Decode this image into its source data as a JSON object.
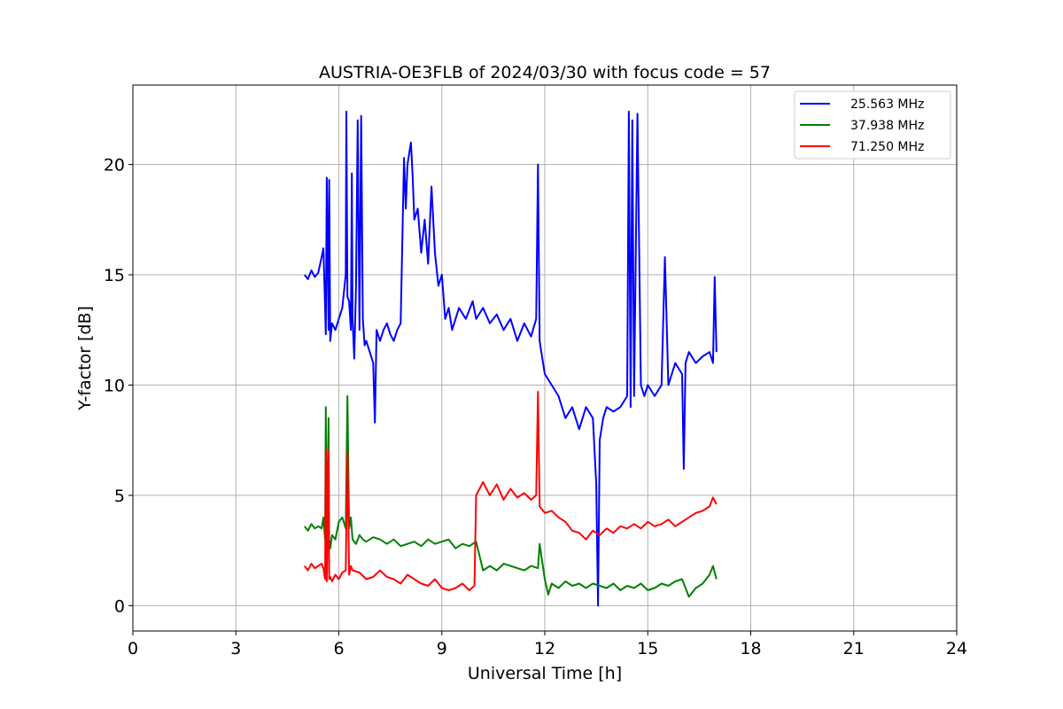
{
  "chart_data": {
    "type": "line",
    "title": "AUSTRIA-OE3FLB of 2024/03/30 with focus code = 57",
    "xlabel": "Universal Time [h]",
    "ylabel": "Y-factor [dB]",
    "xlim": [
      0,
      24
    ],
    "ylim": [
      -1.15,
      23.6
    ],
    "xticks": [
      0,
      3,
      6,
      9,
      12,
      15,
      18,
      21,
      24
    ],
    "yticks": [
      0,
      5,
      10,
      15,
      20
    ],
    "grid": true,
    "legend_position": "top-right",
    "series": [
      {
        "name": "25.563 MHz",
        "color": "#0000ff",
        "x": [
          5.0,
          5.1,
          5.2,
          5.3,
          5.4,
          5.5,
          5.55,
          5.6,
          5.62,
          5.65,
          5.7,
          5.72,
          5.75,
          5.8,
          5.9,
          6.0,
          6.1,
          6.2,
          6.22,
          6.25,
          6.3,
          6.35,
          6.38,
          6.4,
          6.45,
          6.5,
          6.55,
          6.6,
          6.65,
          6.7,
          6.75,
          6.8,
          6.9,
          7.0,
          7.05,
          7.1,
          7.2,
          7.3,
          7.4,
          7.5,
          7.6,
          7.7,
          7.8,
          7.9,
          7.95,
          8.0,
          8.1,
          8.15,
          8.2,
          8.3,
          8.4,
          8.5,
          8.6,
          8.7,
          8.8,
          8.9,
          9.0,
          9.1,
          9.2,
          9.3,
          9.5,
          9.7,
          9.9,
          10.0,
          10.2,
          10.4,
          10.6,
          10.8,
          11.0,
          11.2,
          11.4,
          11.6,
          11.75,
          11.8,
          11.85,
          11.9,
          12.0,
          12.2,
          12.4,
          12.6,
          12.8,
          13.0,
          13.2,
          13.4,
          13.5,
          13.55,
          13.6,
          13.7,
          13.8,
          14.0,
          14.2,
          14.4,
          14.45,
          14.5,
          14.55,
          14.6,
          14.7,
          14.8,
          14.9,
          15.0,
          15.2,
          15.4,
          15.5,
          15.6,
          15.7,
          15.8,
          16.0,
          16.05,
          16.1,
          16.2,
          16.4,
          16.6,
          16.8,
          16.9,
          16.95,
          17.0
        ],
        "values": [
          15.0,
          14.8,
          15.2,
          14.9,
          15.1,
          15.8,
          16.2,
          13.5,
          12.3,
          19.4,
          12.5,
          19.3,
          12.0,
          12.8,
          12.5,
          13.0,
          13.5,
          15.0,
          22.4,
          14.0,
          13.8,
          12.5,
          19.6,
          13.0,
          11.2,
          14.5,
          22.0,
          12.5,
          22.2,
          13.0,
          11.8,
          12.0,
          11.5,
          11.0,
          8.3,
          12.5,
          12.0,
          12.5,
          12.8,
          12.3,
          12.0,
          12.5,
          12.8,
          20.3,
          18.0,
          20.0,
          21.0,
          19.5,
          17.5,
          18.0,
          16.0,
          17.5,
          15.5,
          19.0,
          16.0,
          14.5,
          15.0,
          13.0,
          13.5,
          12.5,
          13.5,
          13.0,
          13.8,
          13.0,
          13.5,
          12.8,
          13.2,
          12.5,
          13.0,
          12.0,
          12.8,
          12.2,
          13.0,
          20.0,
          12.0,
          11.5,
          10.5,
          10.0,
          9.5,
          8.5,
          9.0,
          8.0,
          9.0,
          8.5,
          5.5,
          0.0,
          7.5,
          8.5,
          9.0,
          8.8,
          9.0,
          9.5,
          22.4,
          9.0,
          22.0,
          9.5,
          22.3,
          10.0,
          9.5,
          10.0,
          9.5,
          10.0,
          15.8,
          10.0,
          10.5,
          11.0,
          10.5,
          6.2,
          11.0,
          11.5,
          11.0,
          11.3,
          11.5,
          11.0,
          14.9,
          11.5
        ]
      },
      {
        "name": "37.938 MHz",
        "color": "#008000",
        "x": [
          5.0,
          5.1,
          5.2,
          5.3,
          5.4,
          5.5,
          5.55,
          5.6,
          5.62,
          5.65,
          5.7,
          5.72,
          5.75,
          5.8,
          5.9,
          6.0,
          6.1,
          6.2,
          6.25,
          6.3,
          6.35,
          6.4,
          6.5,
          6.6,
          6.7,
          6.8,
          7.0,
          7.2,
          7.4,
          7.6,
          7.8,
          8.0,
          8.2,
          8.4,
          8.6,
          8.8,
          9.0,
          9.2,
          9.4,
          9.6,
          9.8,
          10.0,
          10.2,
          10.4,
          10.6,
          10.8,
          11.0,
          11.2,
          11.4,
          11.6,
          11.8,
          11.85,
          12.0,
          12.1,
          12.2,
          12.4,
          12.6,
          12.8,
          13.0,
          13.2,
          13.4,
          13.6,
          13.8,
          14.0,
          14.2,
          14.4,
          14.6,
          14.8,
          15.0,
          15.2,
          15.4,
          15.6,
          15.8,
          16.0,
          16.2,
          16.4,
          16.6,
          16.8,
          16.9,
          17.0
        ],
        "values": [
          3.6,
          3.4,
          3.7,
          3.5,
          3.6,
          3.5,
          4.0,
          3.0,
          9.0,
          2.5,
          8.5,
          3.0,
          2.6,
          3.2,
          3.0,
          3.8,
          4.0,
          3.5,
          9.5,
          3.5,
          4.0,
          3.0,
          2.8,
          3.2,
          3.0,
          2.9,
          3.1,
          3.0,
          2.8,
          3.0,
          2.7,
          2.8,
          2.9,
          2.7,
          3.0,
          2.8,
          2.9,
          3.0,
          2.6,
          2.8,
          2.7,
          2.9,
          1.6,
          1.8,
          1.6,
          1.9,
          1.8,
          1.7,
          1.6,
          1.8,
          1.7,
          2.8,
          1.2,
          0.5,
          1.0,
          0.8,
          1.1,
          0.9,
          1.0,
          0.8,
          1.0,
          0.9,
          0.8,
          1.0,
          0.7,
          0.9,
          0.8,
          1.0,
          0.7,
          0.8,
          1.0,
          0.9,
          1.1,
          1.2,
          0.4,
          0.8,
          1.0,
          1.4,
          1.8,
          1.2
        ]
      },
      {
        "name": "71.250 MHz",
        "color": "#ff0000",
        "x": [
          5.0,
          5.1,
          5.2,
          5.3,
          5.4,
          5.5,
          5.55,
          5.6,
          5.62,
          5.65,
          5.7,
          5.72,
          5.75,
          5.8,
          5.9,
          6.0,
          6.1,
          6.2,
          6.25,
          6.3,
          6.35,
          6.4,
          6.6,
          6.8,
          7.0,
          7.2,
          7.4,
          7.6,
          7.8,
          8.0,
          8.2,
          8.4,
          8.6,
          8.8,
          9.0,
          9.2,
          9.4,
          9.6,
          9.8,
          9.95,
          10.0,
          10.2,
          10.4,
          10.6,
          10.8,
          11.0,
          11.2,
          11.4,
          11.6,
          11.75,
          11.8,
          11.85,
          12.0,
          12.2,
          12.4,
          12.6,
          12.8,
          13.0,
          13.2,
          13.4,
          13.6,
          13.8,
          14.0,
          14.2,
          14.4,
          14.6,
          14.8,
          15.0,
          15.2,
          15.4,
          15.6,
          15.8,
          16.0,
          16.2,
          16.4,
          16.6,
          16.8,
          16.9,
          17.0
        ],
        "values": [
          1.8,
          1.6,
          1.9,
          1.7,
          1.8,
          1.9,
          1.7,
          1.2,
          7.1,
          1.1,
          7.0,
          1.2,
          1.3,
          1.1,
          1.4,
          1.2,
          1.5,
          1.6,
          7.0,
          1.4,
          1.8,
          1.6,
          1.5,
          1.2,
          1.3,
          1.6,
          1.3,
          1.2,
          1.0,
          1.4,
          1.2,
          1.0,
          0.9,
          1.2,
          0.8,
          0.7,
          0.8,
          1.0,
          0.7,
          0.9,
          5.0,
          5.6,
          5.0,
          5.5,
          4.8,
          5.3,
          4.9,
          5.1,
          4.8,
          5.0,
          9.7,
          4.5,
          4.2,
          4.3,
          4.0,
          3.8,
          3.4,
          3.3,
          3.0,
          3.4,
          3.2,
          3.5,
          3.3,
          3.6,
          3.5,
          3.7,
          3.5,
          3.8,
          3.6,
          3.7,
          3.9,
          3.6,
          3.8,
          4.0,
          4.2,
          4.3,
          4.5,
          4.9,
          4.6
        ]
      }
    ]
  }
}
